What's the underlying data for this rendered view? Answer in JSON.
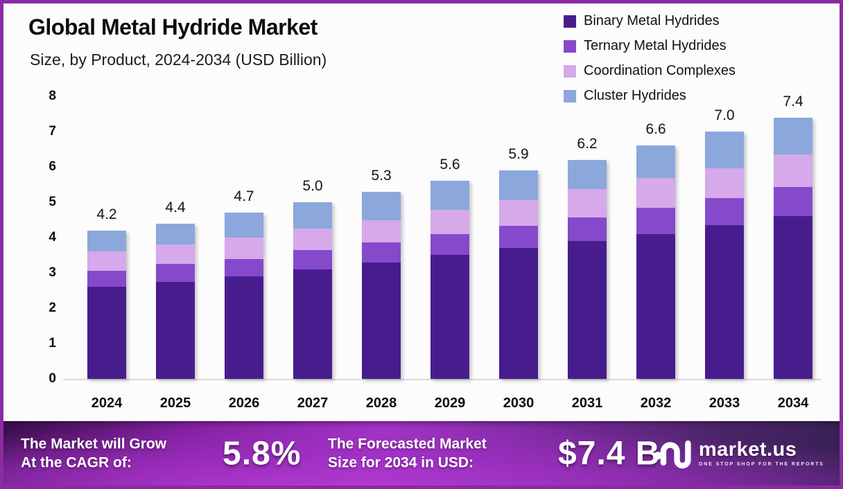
{
  "header": {
    "title": "Global Metal Hydride Market",
    "subtitle": "Size, by Product, 2024-2034 (USD Billion)"
  },
  "colors": {
    "frame_border": "#8B2BA0",
    "binary": "#471D8E",
    "ternary": "#8649CC",
    "coordination": "#D5A9EA",
    "cluster": "#8CA7DB",
    "baseline": "#d9d9d9",
    "banner_bright": "#A234C6",
    "banner_dark": "#372055"
  },
  "chart_data": {
    "type": "bar",
    "stacked": true,
    "title": "Global Metal Hydride Market",
    "subtitle": "Size, by Product, 2024-2034 (USD Billion)",
    "xlabel": "",
    "ylabel": "",
    "ylim": [
      0,
      8
    ],
    "yticks": [
      "0",
      "1",
      "2",
      "3",
      "4",
      "5",
      "6",
      "7",
      "8"
    ],
    "grid": false,
    "legend_position": "top-right",
    "categories": [
      "2024",
      "2025",
      "2026",
      "2027",
      "2028",
      "2029",
      "2030",
      "2031",
      "2032",
      "2033",
      "2034"
    ],
    "series": [
      {
        "name": "Binary Metal Hydrides",
        "color": "#471D8E",
        "values": [
          2.6,
          2.75,
          2.9,
          3.1,
          3.3,
          3.5,
          3.7,
          3.9,
          4.1,
          4.35,
          4.6
        ]
      },
      {
        "name": "Ternary Metal Hydrides",
        "color": "#8649CC",
        "values": [
          0.45,
          0.5,
          0.5,
          0.55,
          0.57,
          0.6,
          0.63,
          0.67,
          0.74,
          0.77,
          0.84
        ]
      },
      {
        "name": "Coordination Complexes",
        "color": "#D5A9EA",
        "values": [
          0.55,
          0.55,
          0.6,
          0.6,
          0.63,
          0.68,
          0.72,
          0.8,
          0.85,
          0.85,
          0.91
        ]
      },
      {
        "name": "Cluster Hydrides",
        "color": "#8CA7DB",
        "values": [
          0.6,
          0.6,
          0.7,
          0.75,
          0.8,
          0.82,
          0.85,
          0.83,
          0.91,
          1.03,
          1.05
        ]
      }
    ],
    "totals": [
      4.2,
      4.4,
      4.7,
      5.0,
      5.3,
      5.6,
      5.9,
      6.2,
      6.6,
      7.0,
      7.4
    ],
    "total_labels": [
      "4.2",
      "4.4",
      "4.7",
      "5.0",
      "5.3",
      "5.6",
      "5.9",
      "6.2",
      "6.6",
      "7.0",
      "7.4"
    ]
  },
  "footer": {
    "cagr_line1": "The Market will Grow",
    "cagr_line2": "At the CAGR of:",
    "cagr_value": "5.8%",
    "forecast_line1": "The Forecasted Market",
    "forecast_line2": "Size for 2034 in USD:",
    "forecast_value": "$7.4 B",
    "brand_name": "market.us",
    "brand_tagline": "ONE STOP SHOP FOR THE REPORTS"
  }
}
